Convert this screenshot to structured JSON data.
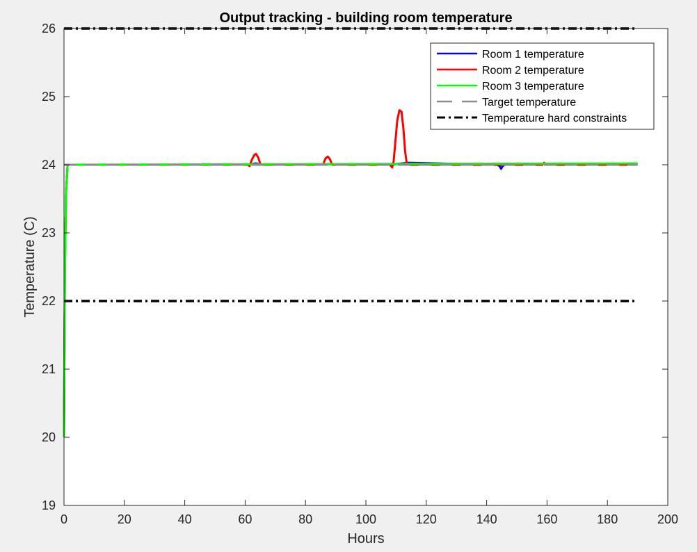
{
  "chart_data": {
    "type": "line",
    "title": "Output tracking - building room temperature",
    "xlabel": "Hours",
    "ylabel": "Temperature (C)",
    "xlim": [
      0,
      200
    ],
    "ylim": [
      19,
      26
    ],
    "xticks": [
      0,
      20,
      40,
      60,
      80,
      100,
      120,
      140,
      160,
      180,
      200
    ],
    "yticks": [
      19,
      20,
      21,
      22,
      23,
      24,
      25,
      26
    ],
    "grid": false,
    "legend_position": "top-right",
    "series": [
      {
        "name": "Room 1 temperature",
        "color": "#0000ff",
        "style": "solid",
        "points": [
          [
            0,
            20
          ],
          [
            0.3,
            22.5
          ],
          [
            0.7,
            23.6
          ],
          [
            1.2,
            24
          ],
          [
            61,
            24
          ],
          [
            63.5,
            24.02
          ],
          [
            66,
            24
          ],
          [
            86,
            24
          ],
          [
            88,
            24.01
          ],
          [
            90,
            24
          ],
          [
            108,
            24
          ],
          [
            114,
            24.03
          ],
          [
            143.5,
            24
          ],
          [
            144.3,
            23.98
          ],
          [
            144.8,
            23.94
          ],
          [
            145.3,
            23.98
          ],
          [
            146,
            24
          ],
          [
            158,
            24
          ],
          [
            159,
            24.02
          ],
          [
            160,
            24
          ],
          [
            190,
            24
          ]
        ]
      },
      {
        "name": "Room 2 temperature",
        "color": "#ff0000",
        "style": "solid",
        "points": [
          [
            0,
            20
          ],
          [
            0.3,
            22.5
          ],
          [
            0.7,
            23.6
          ],
          [
            1.2,
            24
          ],
          [
            61,
            24
          ],
          [
            61.5,
            23.98
          ],
          [
            62.2,
            24.07
          ],
          [
            63,
            24.14
          ],
          [
            63.6,
            24.16
          ],
          [
            64.3,
            24.11
          ],
          [
            64.9,
            24.03
          ],
          [
            65.3,
            24
          ],
          [
            85.5,
            24
          ],
          [
            86,
            24.02
          ],
          [
            86.6,
            24.09
          ],
          [
            87.4,
            24.12
          ],
          [
            88.1,
            24.08
          ],
          [
            88.7,
            24.01
          ],
          [
            89,
            24
          ],
          [
            108,
            24
          ],
          [
            108.7,
            23.96
          ],
          [
            109.2,
            24.05
          ],
          [
            109.8,
            24.35
          ],
          [
            110.4,
            24.65
          ],
          [
            111.1,
            24.8
          ],
          [
            111.8,
            24.78
          ],
          [
            112.4,
            24.55
          ],
          [
            113,
            24.2
          ],
          [
            113.6,
            24
          ],
          [
            158.5,
            24
          ],
          [
            159,
            24.03
          ],
          [
            159.4,
            24.01
          ],
          [
            160,
            24
          ],
          [
            190,
            24
          ]
        ]
      },
      {
        "name": "Room 3 temperature",
        "color": "#00ff00",
        "style": "solid",
        "points": [
          [
            0,
            20
          ],
          [
            0.3,
            22.5
          ],
          [
            0.7,
            23.6
          ],
          [
            1.2,
            24
          ],
          [
            190,
            24.02
          ]
        ]
      },
      {
        "name": "Target temperature",
        "color": "#8c8c8c",
        "style": "dashed",
        "points": [
          [
            0,
            24
          ],
          [
            190,
            24
          ]
        ]
      },
      {
        "name": "Temperature hard constraints",
        "color": "#000000",
        "style": "dashdot",
        "points": [
          [
            0,
            26
          ],
          [
            190,
            26
          ]
        ]
      },
      {
        "name": "",
        "color": "#000000",
        "style": "dashdot",
        "points": [
          [
            0,
            22
          ],
          [
            190,
            22
          ]
        ]
      }
    ],
    "legend": [
      "Room 1 temperature",
      "Room 2 temperature",
      "Room 3 temperature",
      "Target temperature",
      "Temperature hard constraints"
    ]
  }
}
